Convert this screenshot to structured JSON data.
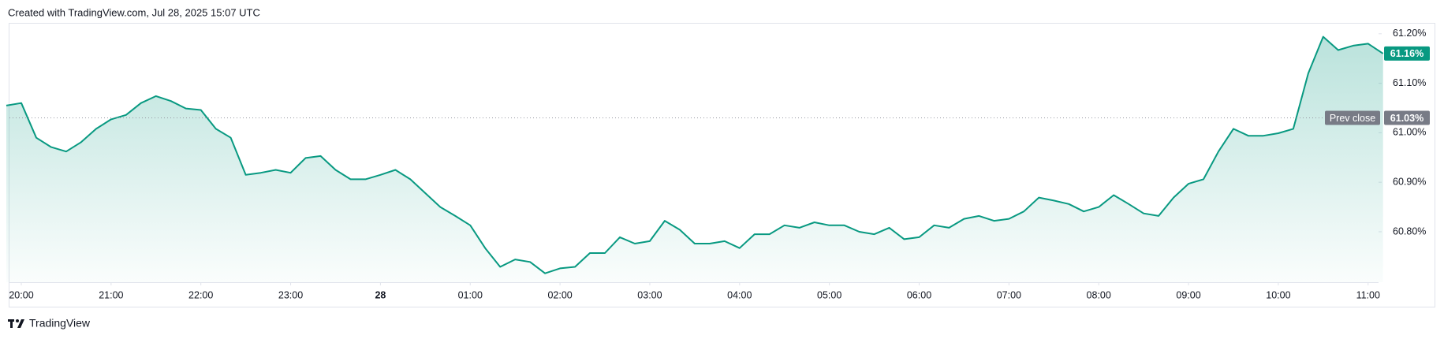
{
  "header": {
    "title": "Created with TradingView.com, Jul 28, 2025 15:07 UTC"
  },
  "footer": {
    "brand": "TradingView"
  },
  "chart_data": {
    "type": "area",
    "x": [
      "19:50",
      "20:00",
      "20:10",
      "20:20",
      "20:30",
      "20:40",
      "20:50",
      "21:00",
      "21:10",
      "21:20",
      "21:30",
      "21:40",
      "21:50",
      "22:00",
      "22:10",
      "22:20",
      "22:30",
      "22:40",
      "22:50",
      "23:00",
      "23:10",
      "23:20",
      "23:30",
      "23:40",
      "23:50",
      "00:00",
      "00:10",
      "00:20",
      "00:30",
      "00:40",
      "00:50",
      "01:00",
      "01:10",
      "01:20",
      "01:30",
      "01:40",
      "01:50",
      "02:00",
      "02:10",
      "02:20",
      "02:30",
      "02:40",
      "02:50",
      "03:00",
      "03:10",
      "03:20",
      "03:30",
      "03:40",
      "03:50",
      "04:00",
      "04:10",
      "04:20",
      "04:30",
      "04:40",
      "04:50",
      "05:00",
      "05:10",
      "05:20",
      "05:30",
      "05:40",
      "05:50",
      "06:00",
      "06:10",
      "06:20",
      "06:30",
      "06:40",
      "06:50",
      "07:00",
      "07:10",
      "07:20",
      "07:30",
      "07:40",
      "07:50",
      "08:00",
      "08:10",
      "08:20",
      "08:30",
      "08:40",
      "08:50",
      "09:00",
      "09:10",
      "09:20",
      "09:30",
      "09:40",
      "09:50",
      "10:00",
      "10:10",
      "10:20",
      "10:30",
      "10:40",
      "10:50",
      "11:00",
      "11:10"
    ],
    "values": [
      61.055,
      61.06,
      60.99,
      60.971,
      60.962,
      60.981,
      61.008,
      61.027,
      61.036,
      61.06,
      61.074,
      61.064,
      61.049,
      61.046,
      61.008,
      60.99,
      60.915,
      60.919,
      60.925,
      60.919,
      60.949,
      60.953,
      60.925,
      60.906,
      60.906,
      60.915,
      60.925,
      60.906,
      60.878,
      60.85,
      60.832,
      60.813,
      60.767,
      60.729,
      60.744,
      60.739,
      60.716,
      60.726,
      60.729,
      60.757,
      60.757,
      60.789,
      60.776,
      60.781,
      60.822,
      60.804,
      60.776,
      60.776,
      60.781,
      60.767,
      60.795,
      60.795,
      60.813,
      60.808,
      60.819,
      60.813,
      60.813,
      60.8,
      60.795,
      60.808,
      60.785,
      60.789,
      60.813,
      60.808,
      60.826,
      60.832,
      60.822,
      60.826,
      60.841,
      60.869,
      60.863,
      60.856,
      60.841,
      60.85,
      60.874,
      60.856,
      60.837,
      60.832,
      60.869,
      60.897,
      60.906,
      60.962,
      61.008,
      60.994,
      60.994,
      60.999,
      61.008,
      61.12,
      61.194,
      61.167,
      61.176,
      61.18,
      61.16
    ],
    "color": "#089981",
    "ylim": [
      60.698,
      61.222
    ],
    "yticks": [
      {
        "value": 60.8,
        "label": "60.80%"
      },
      {
        "value": 60.9,
        "label": "60.90%"
      },
      {
        "value": 61.0,
        "label": "61.00%"
      },
      {
        "value": 61.1,
        "label": "61.10%"
      },
      {
        "value": 61.2,
        "label": "61.20%"
      }
    ],
    "xticks": [
      "20:00",
      "21:00",
      "22:00",
      "23:00",
      {
        "value": "00:00",
        "label": "28"
      },
      "01:00",
      "02:00",
      "03:00",
      "04:00",
      "05:00",
      "06:00",
      "07:00",
      "08:00",
      "09:00",
      "10:00",
      "11:00"
    ],
    "last_price": {
      "value": 61.16,
      "label": "61.16%",
      "color": "#089981"
    },
    "prev_close": {
      "name": "Prev close",
      "value": 61.03,
      "label": "61.03%",
      "color": "#787b86"
    }
  }
}
